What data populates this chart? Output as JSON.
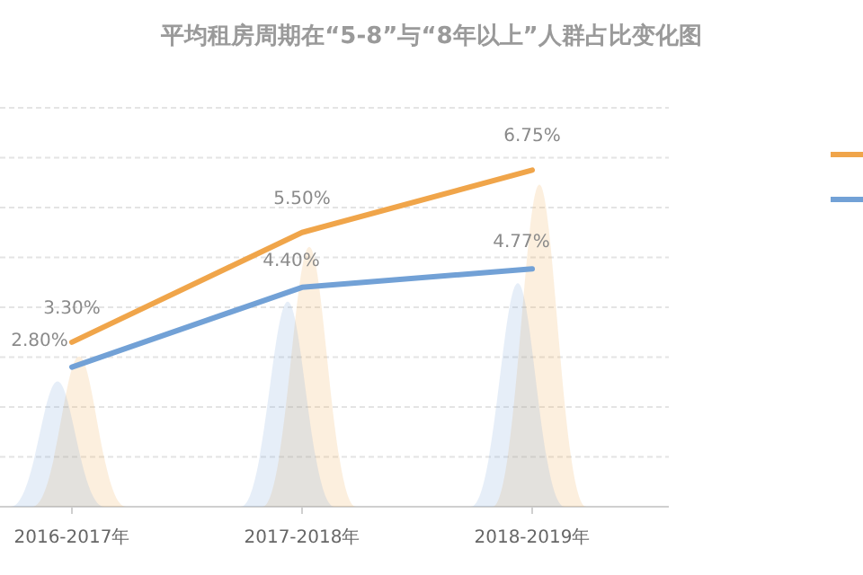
{
  "chart_data": {
    "type": "line",
    "title": "平均租房周期在“5-8”与“8年以上”人群占比变化图",
    "categories": [
      "2016-2017年",
      "2017-2018年",
      "2018-2019年"
    ],
    "series": [
      {
        "color": "#f0a54a",
        "values": [
          3.3,
          5.5,
          6.75
        ],
        "value_labels": [
          "3.30%",
          "5.50%",
          "6.75%"
        ]
      },
      {
        "color": "#72a1d6",
        "values": [
          2.8,
          4.4,
          4.77
        ],
        "value_labels": [
          "2.80%",
          "4.40%",
          "4.77%"
        ]
      }
    ],
    "ylim": [
      0,
      8
    ],
    "yticks": [
      {
        "value": 0,
        "label": null
      },
      {
        "value": 1,
        "label": null
      },
      {
        "value": 2,
        "label": null
      },
      {
        "value": 3,
        "label": null
      },
      {
        "value": 4,
        "label": null
      },
      {
        "value": 5,
        "label": null
      },
      {
        "value": 6,
        "label": null
      },
      {
        "value": 7,
        "label": null
      },
      {
        "value": 8,
        "label": null
      }
    ],
    "tick_labels": "x",
    "grid": "y",
    "marker": "none",
    "line_style": "solid"
  }
}
